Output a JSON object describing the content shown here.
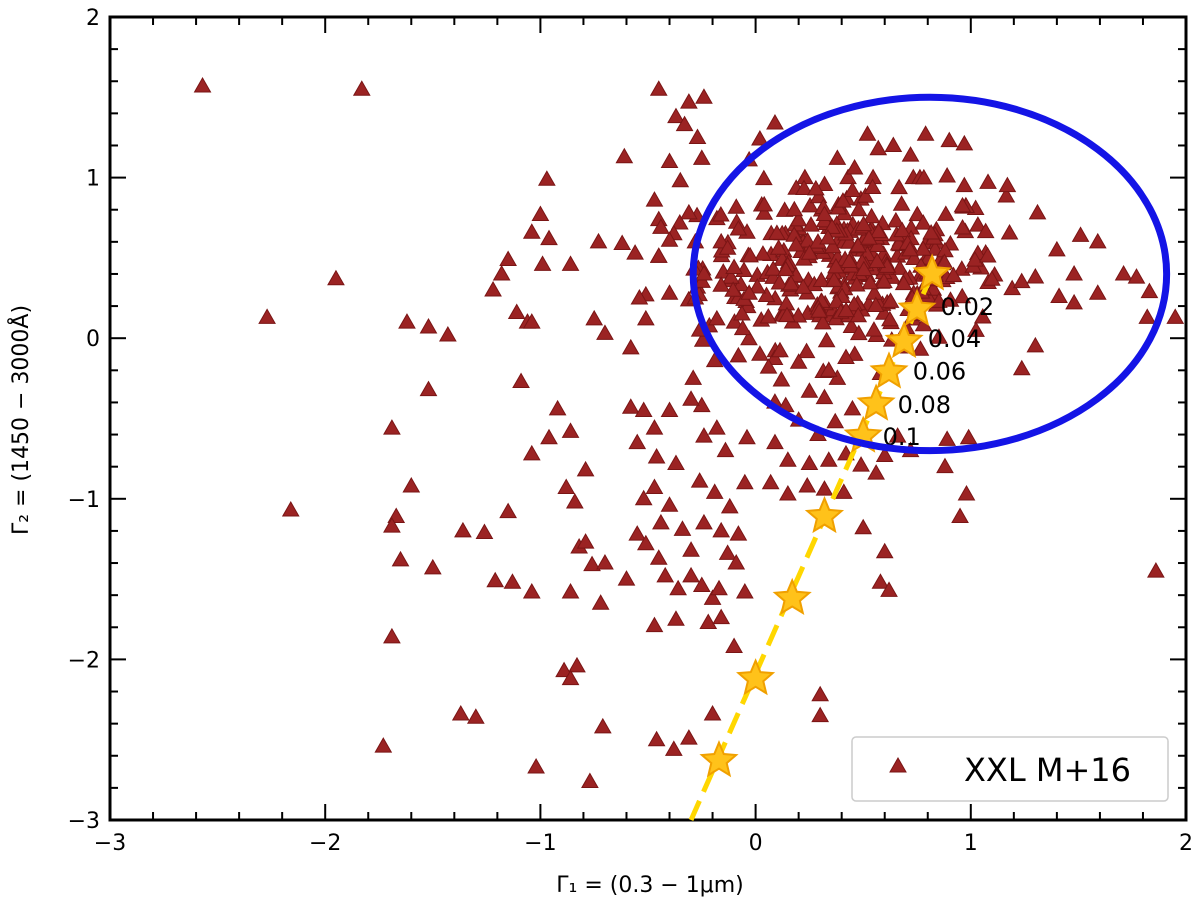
{
  "chart_data": {
    "type": "scatter",
    "xlabel": "Γ₁ = (0.3 − 1μm)",
    "ylabel": "Γ₂ = (1450 − 3000Å)",
    "xlim": [
      -3,
      2
    ],
    "ylim": [
      -3,
      2
    ],
    "x_ticks": [
      -3,
      -2,
      -1,
      0,
      1,
      2
    ],
    "x_tick_labels": [
      "−3",
      "−2",
      "−1",
      "0",
      "1",
      "2"
    ],
    "y_ticks": [
      -3,
      -2,
      -1,
      0,
      1,
      2
    ],
    "y_tick_labels": [
      "−3",
      "−2",
      "−1",
      "0",
      "1",
      "2"
    ],
    "grid": false,
    "legend": {
      "position": "bottom-right",
      "entries": [
        "XXL M+16"
      ]
    },
    "colors": {
      "points": "#9b2323",
      "points_edge": "#7a1515",
      "ellipse": "#1414e6",
      "track": "#ffd700",
      "star": "#ffc21a",
      "star_edge": "#f0a000"
    },
    "series": [
      {
        "name": "XXL M+16",
        "marker": "triangle",
        "points": [
          [
            -2.57,
            1.57
          ],
          [
            -1.83,
            1.55
          ],
          [
            -2.27,
            0.13
          ],
          [
            -1.95,
            0.37
          ],
          [
            -2.16,
            -1.07
          ],
          [
            -1.62,
            0.1
          ],
          [
            -1.52,
            0.07
          ],
          [
            -1.43,
            0.02
          ],
          [
            -1.52,
            -0.32
          ],
          [
            -1.69,
            -0.56
          ],
          [
            -1.6,
            -0.92
          ],
          [
            -1.67,
            -1.11
          ],
          [
            -1.69,
            -1.17
          ],
          [
            -1.65,
            -1.38
          ],
          [
            -1.5,
            -1.43
          ],
          [
            -1.69,
            -1.86
          ],
          [
            -1.73,
            -2.54
          ],
          [
            -1.36,
            -1.2
          ],
          [
            -1.26,
            -1.21
          ],
          [
            -1.3,
            -2.36
          ],
          [
            -1.37,
            -2.34
          ],
          [
            -1.22,
            0.3
          ],
          [
            -1.15,
            0.49
          ],
          [
            -1.11,
            0.16
          ],
          [
            -1.06,
            0.1
          ],
          [
            -1.18,
            0.4
          ],
          [
            -1.04,
            0.1
          ],
          [
            -1.09,
            -0.27
          ],
          [
            -1.04,
            -0.72
          ],
          [
            -0.96,
            -0.62
          ],
          [
            -1.15,
            -1.08
          ],
          [
            -1.21,
            -1.51
          ],
          [
            -1.13,
            -1.52
          ],
          [
            -1.04,
            -1.58
          ],
          [
            -1.02,
            -2.67
          ],
          [
            -0.97,
            0.99
          ],
          [
            -1.0,
            0.77
          ],
          [
            -1.04,
            0.66
          ],
          [
            -0.99,
            0.46
          ],
          [
            -0.96,
            0.62
          ],
          [
            -0.86,
            0.46
          ],
          [
            -0.92,
            -0.44
          ],
          [
            -0.86,
            -0.58
          ],
          [
            -0.79,
            -0.82
          ],
          [
            -0.88,
            -0.93
          ],
          [
            -0.84,
            -1.02
          ],
          [
            -0.82,
            -1.3
          ],
          [
            -0.86,
            -1.58
          ],
          [
            -0.79,
            -1.27
          ],
          [
            -0.76,
            -1.41
          ],
          [
            -0.83,
            -2.04
          ],
          [
            -0.89,
            -2.07
          ],
          [
            -0.86,
            -2.12
          ],
          [
            -0.71,
            -2.42
          ],
          [
            -0.77,
            -2.76
          ],
          [
            -0.72,
            -1.65
          ],
          [
            -0.7,
            -1.4
          ],
          [
            -0.6,
            -1.5
          ],
          [
            -0.75,
            0.12
          ],
          [
            -0.7,
            0.03
          ],
          [
            -0.73,
            0.6
          ],
          [
            -0.62,
            0.59
          ],
          [
            -0.56,
            0.53
          ],
          [
            -0.51,
            0.27
          ],
          [
            -0.45,
            0.51
          ],
          [
            -0.4,
            0.28
          ],
          [
            -0.51,
            0.12
          ],
          [
            -0.58,
            -0.06
          ],
          [
            -0.54,
            0.25
          ],
          [
            -0.45,
            1.55
          ],
          [
            -0.37,
            1.38
          ],
          [
            -0.4,
            1.1
          ],
          [
            -0.61,
            1.13
          ],
          [
            -0.33,
            1.33
          ],
          [
            -0.35,
            0.98
          ],
          [
            -0.31,
            1.47
          ],
          [
            -0.24,
            1.5
          ],
          [
            -0.27,
            1.25
          ],
          [
            -0.25,
            1.12
          ],
          [
            -0.31,
            0.78
          ],
          [
            -0.38,
            0.65
          ],
          [
            -0.47,
            0.86
          ],
          [
            -0.44,
            0.69
          ],
          [
            -0.4,
            0.61
          ],
          [
            -0.58,
            -0.43
          ],
          [
            -0.52,
            -0.45
          ],
          [
            -0.47,
            -0.56
          ],
          [
            -0.4,
            -0.45
          ],
          [
            -0.55,
            -0.65
          ],
          [
            -0.46,
            -0.74
          ],
          [
            -0.37,
            -0.78
          ],
          [
            -0.47,
            -0.93
          ],
          [
            -0.52,
            -1.0
          ],
          [
            -0.4,
            -1.04
          ],
          [
            -0.55,
            -1.22
          ],
          [
            -0.44,
            -1.15
          ],
          [
            -0.51,
            -1.28
          ],
          [
            -0.45,
            -1.37
          ],
          [
            -0.34,
            -1.19
          ],
          [
            -0.3,
            -1.32
          ],
          [
            -0.42,
            -1.48
          ],
          [
            -0.36,
            -1.56
          ],
          [
            -0.3,
            -1.48
          ],
          [
            -0.25,
            -1.54
          ],
          [
            -0.2,
            -1.62
          ],
          [
            -0.47,
            -1.79
          ],
          [
            -0.37,
            -1.75
          ],
          [
            -0.22,
            -1.77
          ],
          [
            -0.46,
            -2.5
          ],
          [
            -0.38,
            -2.56
          ],
          [
            -0.31,
            -2.49
          ],
          [
            -0.28,
            0.6
          ],
          [
            -0.24,
            0.4
          ],
          [
            -0.16,
            0.6
          ],
          [
            -0.16,
            0.33
          ],
          [
            -0.13,
            0.56
          ],
          [
            -0.1,
            0.44
          ],
          [
            -0.03,
            0.28
          ],
          [
            -0.08,
            0.68
          ],
          [
            -0.28,
            0.25
          ],
          [
            -0.26,
            0.05
          ],
          [
            -0.18,
            0.12
          ],
          [
            -0.06,
            0.06
          ],
          [
            -0.08,
            -0.11
          ],
          [
            -0.19,
            -0.14
          ],
          [
            -0.29,
            -0.25
          ],
          [
            -0.25,
            -0.42
          ],
          [
            -0.3,
            -0.38
          ],
          [
            -0.18,
            -0.56
          ],
          [
            -0.24,
            -0.61
          ],
          [
            -0.14,
            -0.7
          ],
          [
            -0.04,
            -0.62
          ],
          [
            -0.26,
            -0.89
          ],
          [
            -0.19,
            -0.96
          ],
          [
            -0.12,
            -1.05
          ],
          [
            -0.05,
            -0.9
          ],
          [
            -0.24,
            -1.15
          ],
          [
            -0.16,
            -1.2
          ],
          [
            -0.08,
            -1.22
          ],
          [
            -0.13,
            -1.34
          ],
          [
            -0.17,
            -1.56
          ],
          [
            -0.09,
            -1.4
          ],
          [
            -0.05,
            -1.58
          ],
          [
            -0.16,
            -1.74
          ],
          [
            -0.1,
            -1.92
          ],
          [
            -0.2,
            -2.34
          ],
          [
            0.02,
            1.24
          ],
          [
            0.09,
            1.34
          ],
          [
            -0.03,
            1.11
          ],
          [
            0.04,
            0.83
          ],
          [
            0.18,
            0.8
          ],
          [
            0.28,
            0.93
          ],
          [
            0.38,
            1.12
          ],
          [
            0.46,
            1.06
          ],
          [
            0.52,
            1.27
          ],
          [
            0.57,
            1.18
          ],
          [
            0.45,
            0.92
          ],
          [
            0.32,
            0.77
          ],
          [
            0.64,
            1.2
          ],
          [
            0.72,
            1.14
          ],
          [
            0.79,
            1.27
          ],
          [
            0.9,
            1.23
          ],
          [
            0.97,
            1.21
          ],
          [
            0.89,
            1.01
          ],
          [
            0.97,
            0.95
          ],
          [
            1.08,
            0.97
          ],
          [
            1.17,
            0.95
          ],
          [
            1.31,
            0.78
          ],
          [
            1.4,
            0.55
          ],
          [
            1.51,
            0.64
          ],
          [
            1.59,
            0.6
          ],
          [
            1.71,
            0.4
          ],
          [
            1.77,
            0.38
          ],
          [
            1.48,
            0.4
          ],
          [
            1.41,
            0.26
          ],
          [
            1.48,
            0.22
          ],
          [
            1.59,
            0.28
          ],
          [
            1.83,
            0.29
          ],
          [
            1.82,
            0.13
          ],
          [
            1.95,
            0.13
          ],
          [
            1.86,
            -1.45
          ],
          [
            0.02,
            -0.1
          ],
          [
            0.06,
            -0.18
          ],
          [
            0.12,
            -0.26
          ],
          [
            0.2,
            -0.15
          ],
          [
            0.25,
            -0.33
          ],
          [
            0.32,
            -0.37
          ],
          [
            0.38,
            -0.25
          ],
          [
            0.14,
            -0.42
          ],
          [
            0.2,
            -0.51
          ],
          [
            0.29,
            -0.6
          ],
          [
            0.37,
            -0.52
          ],
          [
            0.45,
            -0.44
          ],
          [
            0.09,
            -0.65
          ],
          [
            0.15,
            -0.76
          ],
          [
            0.25,
            -0.78
          ],
          [
            0.34,
            -0.76
          ],
          [
            0.42,
            -0.72
          ],
          [
            0.49,
            -0.79
          ],
          [
            0.56,
            -0.84
          ],
          [
            0.07,
            -0.9
          ],
          [
            0.15,
            -0.97
          ],
          [
            0.24,
            -0.92
          ],
          [
            0.32,
            -0.94
          ],
          [
            0.41,
            -0.96
          ],
          [
            0.6,
            -0.73
          ],
          [
            0.66,
            -0.61
          ],
          [
            0.72,
            -0.7
          ],
          [
            0.89,
            -0.63
          ],
          [
            0.99,
            -0.62
          ],
          [
            0.95,
            -1.11
          ],
          [
            0.98,
            -0.97
          ],
          [
            0.88,
            -0.8
          ],
          [
            0.6,
            -1.33
          ],
          [
            0.5,
            -1.18
          ],
          [
            0.58,
            -1.52
          ],
          [
            0.62,
            -1.57
          ],
          [
            0.3,
            -2.22
          ],
          [
            0.3,
            -2.35
          ],
          [
            0.34,
            -0.2
          ],
          [
            0.42,
            -0.12
          ],
          [
            0.55,
            0.05
          ],
          [
            0.58,
            -0.22
          ]
        ],
        "dense_cluster": {
          "x_center": 0.45,
          "y_center": 0.45,
          "x_sd": 0.35,
          "y_sd": 0.25,
          "count": 360
        }
      }
    ],
    "ellipse": {
      "x_center": 0.81,
      "y_center": 0.4,
      "x_radius": 1.1,
      "y_radius": 1.1
    },
    "track": {
      "stars": [
        [
          0.82,
          0.4
        ],
        [
          0.75,
          0.18
        ],
        [
          0.69,
          -0.02
        ],
        [
          0.62,
          -0.21
        ],
        [
          0.56,
          -0.41
        ],
        [
          0.5,
          -0.61
        ],
        [
          0.32,
          -1.11
        ],
        [
          0.17,
          -1.62
        ],
        [
          0.0,
          -2.12
        ],
        [
          -0.17,
          -2.63
        ]
      ],
      "line_start": [
        0.82,
        0.4
      ],
      "line_end": [
        -0.3,
        -3.0
      ],
      "labels": [
        {
          "text": "0.02",
          "x": 0.86,
          "y": 0.2
        },
        {
          "text": "0.04",
          "x": 0.8,
          "y": 0.0
        },
        {
          "text": "0.06",
          "x": 0.73,
          "y": -0.2
        },
        {
          "text": "0.08",
          "x": 0.66,
          "y": -0.41
        },
        {
          "text": "0.1",
          "x": 0.59,
          "y": -0.61
        }
      ]
    }
  }
}
